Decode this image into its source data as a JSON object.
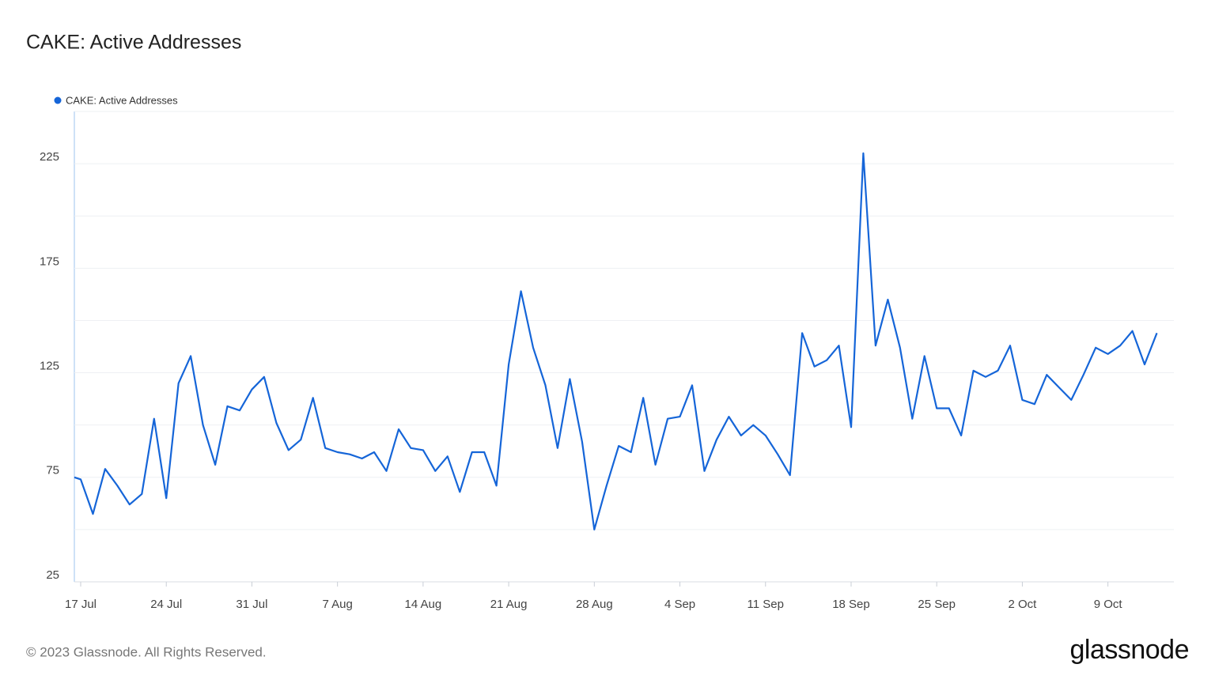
{
  "chart_data": {
    "type": "line",
    "title": "CAKE: Active Addresses",
    "footer": "© 2023 Glassnode. All Rights Reserved.",
    "brand": "glassnode",
    "categories": [
      null,
      "17 Jul",
      null,
      null,
      null,
      null,
      null,
      null,
      "24 Jul",
      null,
      null,
      null,
      null,
      null,
      null,
      "31 Jul",
      null,
      null,
      null,
      null,
      null,
      null,
      "7 Aug",
      null,
      null,
      null,
      null,
      null,
      null,
      "14 Aug",
      null,
      null,
      null,
      null,
      null,
      null,
      "21 Aug",
      null,
      null,
      null,
      null,
      null,
      null,
      "28 Aug",
      null,
      null,
      null,
      null,
      null,
      null,
      "4 Sep",
      null,
      null,
      null,
      null,
      null,
      null,
      "11 Sep",
      null,
      null,
      null,
      null,
      null,
      null,
      "18 Sep",
      null,
      null,
      null,
      null,
      null,
      null,
      "25 Sep",
      null,
      null,
      null,
      null,
      null,
      null,
      "2 Oct",
      null,
      null,
      null,
      null,
      null,
      null,
      "9 Oct",
      null,
      null,
      null,
      null
    ],
    "series": [
      {
        "name": "CAKE: Active Addresses",
        "color": "#1565d8",
        "values": [
          75,
          74,
          57.5,
          79,
          71,
          62,
          67,
          103,
          65,
          120,
          133,
          100,
          81,
          109,
          107,
          117,
          123,
          101,
          88,
          93,
          113,
          89,
          87,
          86,
          84,
          87,
          78,
          98,
          89,
          88,
          78,
          85,
          68,
          87,
          87,
          71,
          129,
          164,
          137,
          119,
          89,
          122,
          92,
          50,
          71,
          90,
          87,
          113,
          81,
          103,
          104,
          119,
          78,
          93,
          104,
          95,
          100,
          95,
          86,
          76,
          144,
          128,
          131,
          138,
          99,
          230,
          138,
          160,
          137,
          103,
          133,
          108,
          108,
          95,
          126,
          123,
          126,
          138,
          112,
          110,
          124,
          118,
          112,
          124,
          137,
          134,
          138,
          145,
          129,
          144
        ]
      }
    ],
    "ylim": [
      25,
      250
    ],
    "yticks": [
      25,
      75,
      125,
      175,
      225
    ],
    "ygrid": [
      50,
      75,
      100,
      125,
      150,
      175,
      200,
      225,
      250
    ],
    "grid": true,
    "legend": "top-left"
  }
}
